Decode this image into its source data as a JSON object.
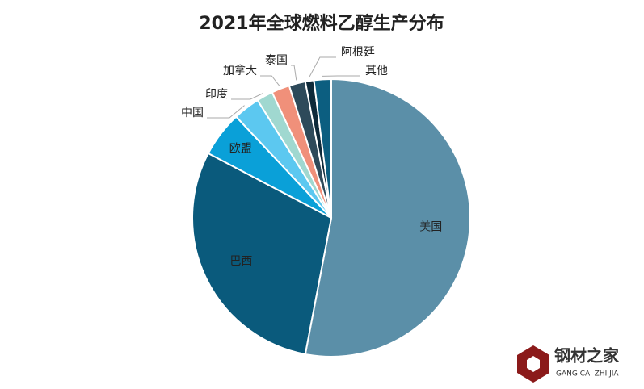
{
  "chart_data": {
    "type": "pie",
    "title": "2021年全球燃料乙醇生产分布",
    "categories": [
      "美国",
      "巴西",
      "欧盟",
      "中国",
      "印度",
      "加拿大",
      "泰国",
      "阿根廷",
      "其他"
    ],
    "values": [
      53,
      29.7,
      5.3,
      3.1,
      1.9,
      2.1,
      1.9,
      1.0,
      2.0
    ],
    "colors": [
      "#5b8fa8",
      "#0a5a7c",
      "#0aa0d8",
      "#5cc8f0",
      "#a0d8d0",
      "#f0907a",
      "#2e4a5a",
      "#0e2a3a",
      "#0c5e80"
    ]
  },
  "watermark": {
    "name": "钢材之家",
    "pinyin": "GANG CAI ZHI JIA"
  }
}
